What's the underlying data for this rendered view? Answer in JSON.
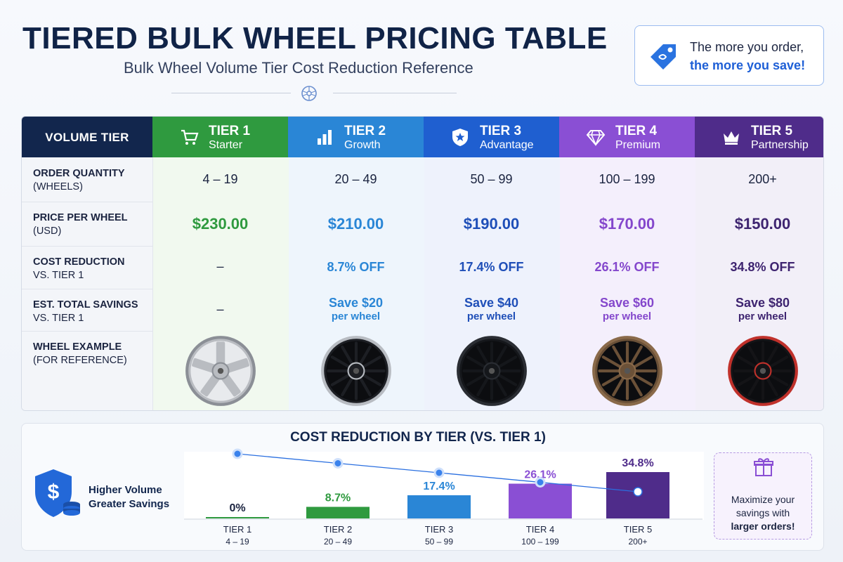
{
  "header": {
    "title": "TIERED BULK WHEEL PRICING TABLE",
    "subtitle": "Bulk Wheel Volume Tier Cost Reduction Reference"
  },
  "promo": {
    "line1": "The more you order,",
    "line2": "the more you save!",
    "icon": "price-tag-icon"
  },
  "table": {
    "header_label": "VOLUME TIER",
    "tiers": [
      {
        "name": "TIER 1",
        "sub": "Starter",
        "color": "#2f9a3f",
        "light": "#f1f9ef",
        "text": "#2f9a3f",
        "icon": "cart-icon",
        "qty": "4 – 19",
        "price": "$230.00",
        "reduction": "–",
        "save1": "–",
        "save2": "",
        "wheel": "#b9bcc1",
        "rim": "#8b8f96"
      },
      {
        "name": "TIER 2",
        "sub": "Growth",
        "color": "#2a86d6",
        "light": "#eef5fc",
        "text": "#2a86d6",
        "icon": "bar-chart-icon",
        "qty": "20 – 49",
        "price": "$210.00",
        "reduction": "8.7% OFF",
        "save1": "Save $20",
        "save2": "per wheel",
        "wheel": "#1d1f24",
        "rim": "#b8bcc2"
      },
      {
        "name": "TIER 3",
        "sub": "Advantage",
        "color": "#1f5fd0",
        "light": "#eef2fc",
        "text": "#1f4fb8",
        "icon": "shield-star-icon",
        "qty": "50 – 99",
        "price": "$190.00",
        "reduction": "17.4% OFF",
        "save1": "Save $40",
        "save2": "per wheel",
        "wheel": "#15171b",
        "rim": "#2a2d33"
      },
      {
        "name": "TIER 4",
        "sub": "Premium",
        "color": "#8a4fd4",
        "light": "#f4effc",
        "text": "#8447cc",
        "icon": "diamond-icon",
        "qty": "100 – 199",
        "price": "$170.00",
        "reduction": "26.1% OFF",
        "save1": "Save $60",
        "save2": "per wheel",
        "wheel": "#6b5138",
        "rim": "#8a6a4a"
      },
      {
        "name": "TIER 5",
        "sub": "Partnership",
        "color": "#4f2c8a",
        "light": "#f2eff8",
        "text": "#3e2470",
        "icon": "crown-icon",
        "qty": "200+",
        "price": "$150.00",
        "reduction": "34.8% OFF",
        "save1": "Save $80",
        "save2": "per wheel",
        "wheel": "#141417",
        "rim": "#c0312b"
      }
    ],
    "rows": [
      {
        "label1": "ORDER QUANTITY",
        "label2": "(WHEELS)"
      },
      {
        "label1": "PRICE PER WHEEL",
        "label2": "(USD)"
      },
      {
        "label1": "COST REDUCTION",
        "label2": "VS. TIER 1"
      },
      {
        "label1": "EST. TOTAL SAVINGS",
        "label2": "VS. TIER 1"
      },
      {
        "label1": "WHEEL EXAMPLE",
        "label2": "(FOR REFERENCE)"
      }
    ]
  },
  "chart_side": {
    "line1": "Higher Volume",
    "line2": "Greater Savings",
    "icon": "dollar-shield-icon"
  },
  "gift_box": {
    "line1": "Maximize your",
    "line2": "savings with",
    "line3": "larger orders!",
    "icon": "gift-icon"
  },
  "chart_data": {
    "type": "bar",
    "title": "COST REDUCTION BY TIER (VS. TIER 1)",
    "categories": [
      "TIER 1",
      "TIER 2",
      "TIER 3",
      "TIER 4",
      "TIER 5"
    ],
    "sublabels": [
      "4 – 19",
      "20 – 49",
      "50 – 99",
      "100 – 199",
      "200+"
    ],
    "values": [
      0,
      8.7,
      17.4,
      26.1,
      34.8
    ],
    "value_labels": [
      "0%",
      "8.7%",
      "17.4%",
      "26.1%",
      "34.8%"
    ],
    "colors": [
      "#2f9a3f",
      "#2f9a3f",
      "#2a86d6",
      "#8a4fd4",
      "#4f2c8a"
    ],
    "line_color": "#2a6fe0",
    "ylim": [
      0,
      40
    ],
    "xlabel": "",
    "ylabel": ""
  }
}
